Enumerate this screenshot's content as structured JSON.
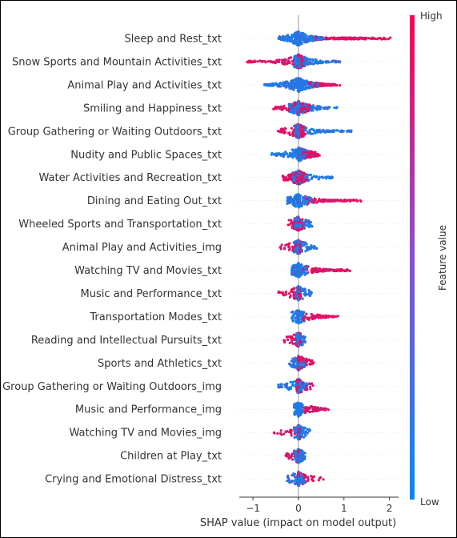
{
  "chart_data": {
    "type": "scatter",
    "subtype": "shap-beeswarm",
    "xlabel": "SHAP value (impact on model output)",
    "xticks": [
      -1,
      0,
      1,
      2
    ],
    "xlim": [
      -1.3,
      2.2
    ],
    "zero_line": 0,
    "colorbar": {
      "label": "Feature value",
      "high_label": "High",
      "low_label": "Low",
      "high_color": "#ff0052",
      "low_color": "#008bfb"
    },
    "features": [
      {
        "name": "Sleep and Rest_txt",
        "low_range": [
          -0.45,
          0.55
        ],
        "high_range": [
          0.3,
          2.05
        ],
        "density": "high"
      },
      {
        "name": "Snow Sports and Mountain Activities_txt",
        "low_range": [
          -0.1,
          0.95
        ],
        "high_range": [
          -1.15,
          0.1
        ],
        "density": "high"
      },
      {
        "name": "Animal Play and Activities_txt",
        "low_range": [
          -0.75,
          0.45
        ],
        "high_range": [
          0.2,
          0.95
        ],
        "density": "high"
      },
      {
        "name": "Smiling and Happiness_txt",
        "low_range": [
          -0.2,
          0.85
        ],
        "high_range": [
          -0.55,
          0.25
        ],
        "density": "medium"
      },
      {
        "name": "Group Gathering or Waiting Outdoors_txt",
        "low_range": [
          -0.1,
          1.2
        ],
        "high_range": [
          -0.45,
          0.15
        ],
        "density": "medium"
      },
      {
        "name": "Nudity and Public Spaces_txt",
        "low_range": [
          -0.6,
          0.2
        ],
        "high_range": [
          0.05,
          0.5
        ],
        "density": "medium"
      },
      {
        "name": "Water Activities and Recreation_txt",
        "low_range": [
          -0.15,
          0.75
        ],
        "high_range": [
          -0.35,
          0.2
        ],
        "density": "medium"
      },
      {
        "name": "Dining and Eating Out_txt",
        "low_range": [
          -0.25,
          0.3
        ],
        "high_range": [
          0.1,
          1.45
        ],
        "density": "medium"
      },
      {
        "name": "Wheeled Sports and Transportation_txt",
        "low_range": [
          -0.1,
          0.3
        ],
        "high_range": [
          -0.25,
          0.1
        ],
        "density": "low"
      },
      {
        "name": "Animal Play and Activities_img",
        "low_range": [
          -0.1,
          0.4
        ],
        "high_range": [
          -0.4,
          0.05
        ],
        "density": "low"
      },
      {
        "name": "Watching TV and Movies_txt",
        "low_range": [
          -0.15,
          0.2
        ],
        "high_range": [
          0.1,
          1.2
        ],
        "density": "medium"
      },
      {
        "name": "Music and Performance_txt",
        "low_range": [
          -0.05,
          0.3
        ],
        "high_range": [
          -0.45,
          0.05
        ],
        "density": "low"
      },
      {
        "name": "Transportation Modes_txt",
        "low_range": [
          -0.15,
          0.15
        ],
        "high_range": [
          0.05,
          0.9
        ],
        "density": "low"
      },
      {
        "name": "Reading and Intellectual Pursuits_txt",
        "low_range": [
          -0.05,
          0.15
        ],
        "high_range": [
          -0.35,
          0.05
        ],
        "density": "low"
      },
      {
        "name": "Sports and Athletics_txt",
        "low_range": [
          -0.2,
          0.15
        ],
        "high_range": [
          0.0,
          0.35
        ],
        "density": "low"
      },
      {
        "name": "Group Gathering or Waiting Outdoors_img",
        "low_range": [
          -0.45,
          0.2
        ],
        "high_range": [
          -0.05,
          0.4
        ],
        "density": "low"
      },
      {
        "name": "Music and Performance_img",
        "low_range": [
          -0.1,
          0.1
        ],
        "high_range": [
          0.05,
          0.7
        ],
        "density": "low"
      },
      {
        "name": "Watching TV and Movies_img",
        "low_range": [
          -0.1,
          0.3
        ],
        "high_range": [
          -0.55,
          0.05
        ],
        "density": "low"
      },
      {
        "name": "Children at Play_txt",
        "low_range": [
          -0.1,
          0.15
        ],
        "high_range": [
          -0.3,
          0.0
        ],
        "density": "low"
      },
      {
        "name": "Crying and Emotional Distress_txt",
        "low_range": [
          -0.25,
          0.15
        ],
        "high_range": [
          0.0,
          0.55
        ],
        "density": "low"
      }
    ]
  }
}
